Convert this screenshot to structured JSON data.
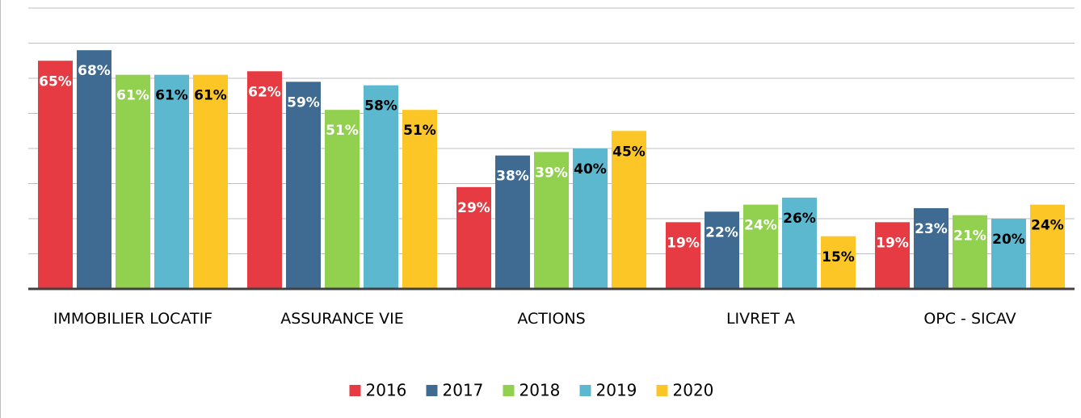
{
  "chart_data": {
    "type": "bar",
    "categories": [
      "IMMOBILIER LOCATIF",
      "ASSURANCE VIE",
      "ACTIONS",
      "LIVRET A",
      "OPC - SICAV"
    ],
    "series": [
      {
        "name": "2016",
        "color": "#e63b43",
        "label_color": "#ffffff",
        "values": [
          65,
          62,
          29,
          19,
          19
        ],
        "value_labels": [
          "65%",
          "62%",
          "29%",
          "19%",
          "19%"
        ]
      },
      {
        "name": "2017",
        "color": "#3f6b93",
        "label_color": "#ffffff",
        "values": [
          68,
          59,
          38,
          22,
          23
        ],
        "value_labels": [
          "68%",
          "59%",
          "38%",
          "22%",
          "23%"
        ]
      },
      {
        "name": "2018",
        "color": "#92d050",
        "label_color": "#ffffff",
        "values": [
          61,
          51,
          39,
          24,
          21
        ],
        "value_labels": [
          "61%",
          "51%",
          "39%",
          "24%",
          "21%"
        ]
      },
      {
        "name": "2019",
        "color": "#5bb8cf",
        "label_color": "#000000",
        "values": [
          61,
          58,
          40,
          26,
          20
        ],
        "value_labels": [
          "61%",
          "58%",
          "40%",
          "26%",
          "20%"
        ]
      },
      {
        "name": "2020",
        "color": "#fcc726",
        "label_color": "#000000",
        "values": [
          61,
          51,
          45,
          15,
          24
        ],
        "value_labels": [
          "61%",
          "51%",
          "45%",
          "15%",
          "24%"
        ]
      }
    ],
    "ylim": [
      0,
      80
    ],
    "yticks": [
      0,
      10,
      20,
      30,
      40,
      50,
      60,
      70,
      80
    ],
    "grid": true,
    "legend": "bottom"
  }
}
